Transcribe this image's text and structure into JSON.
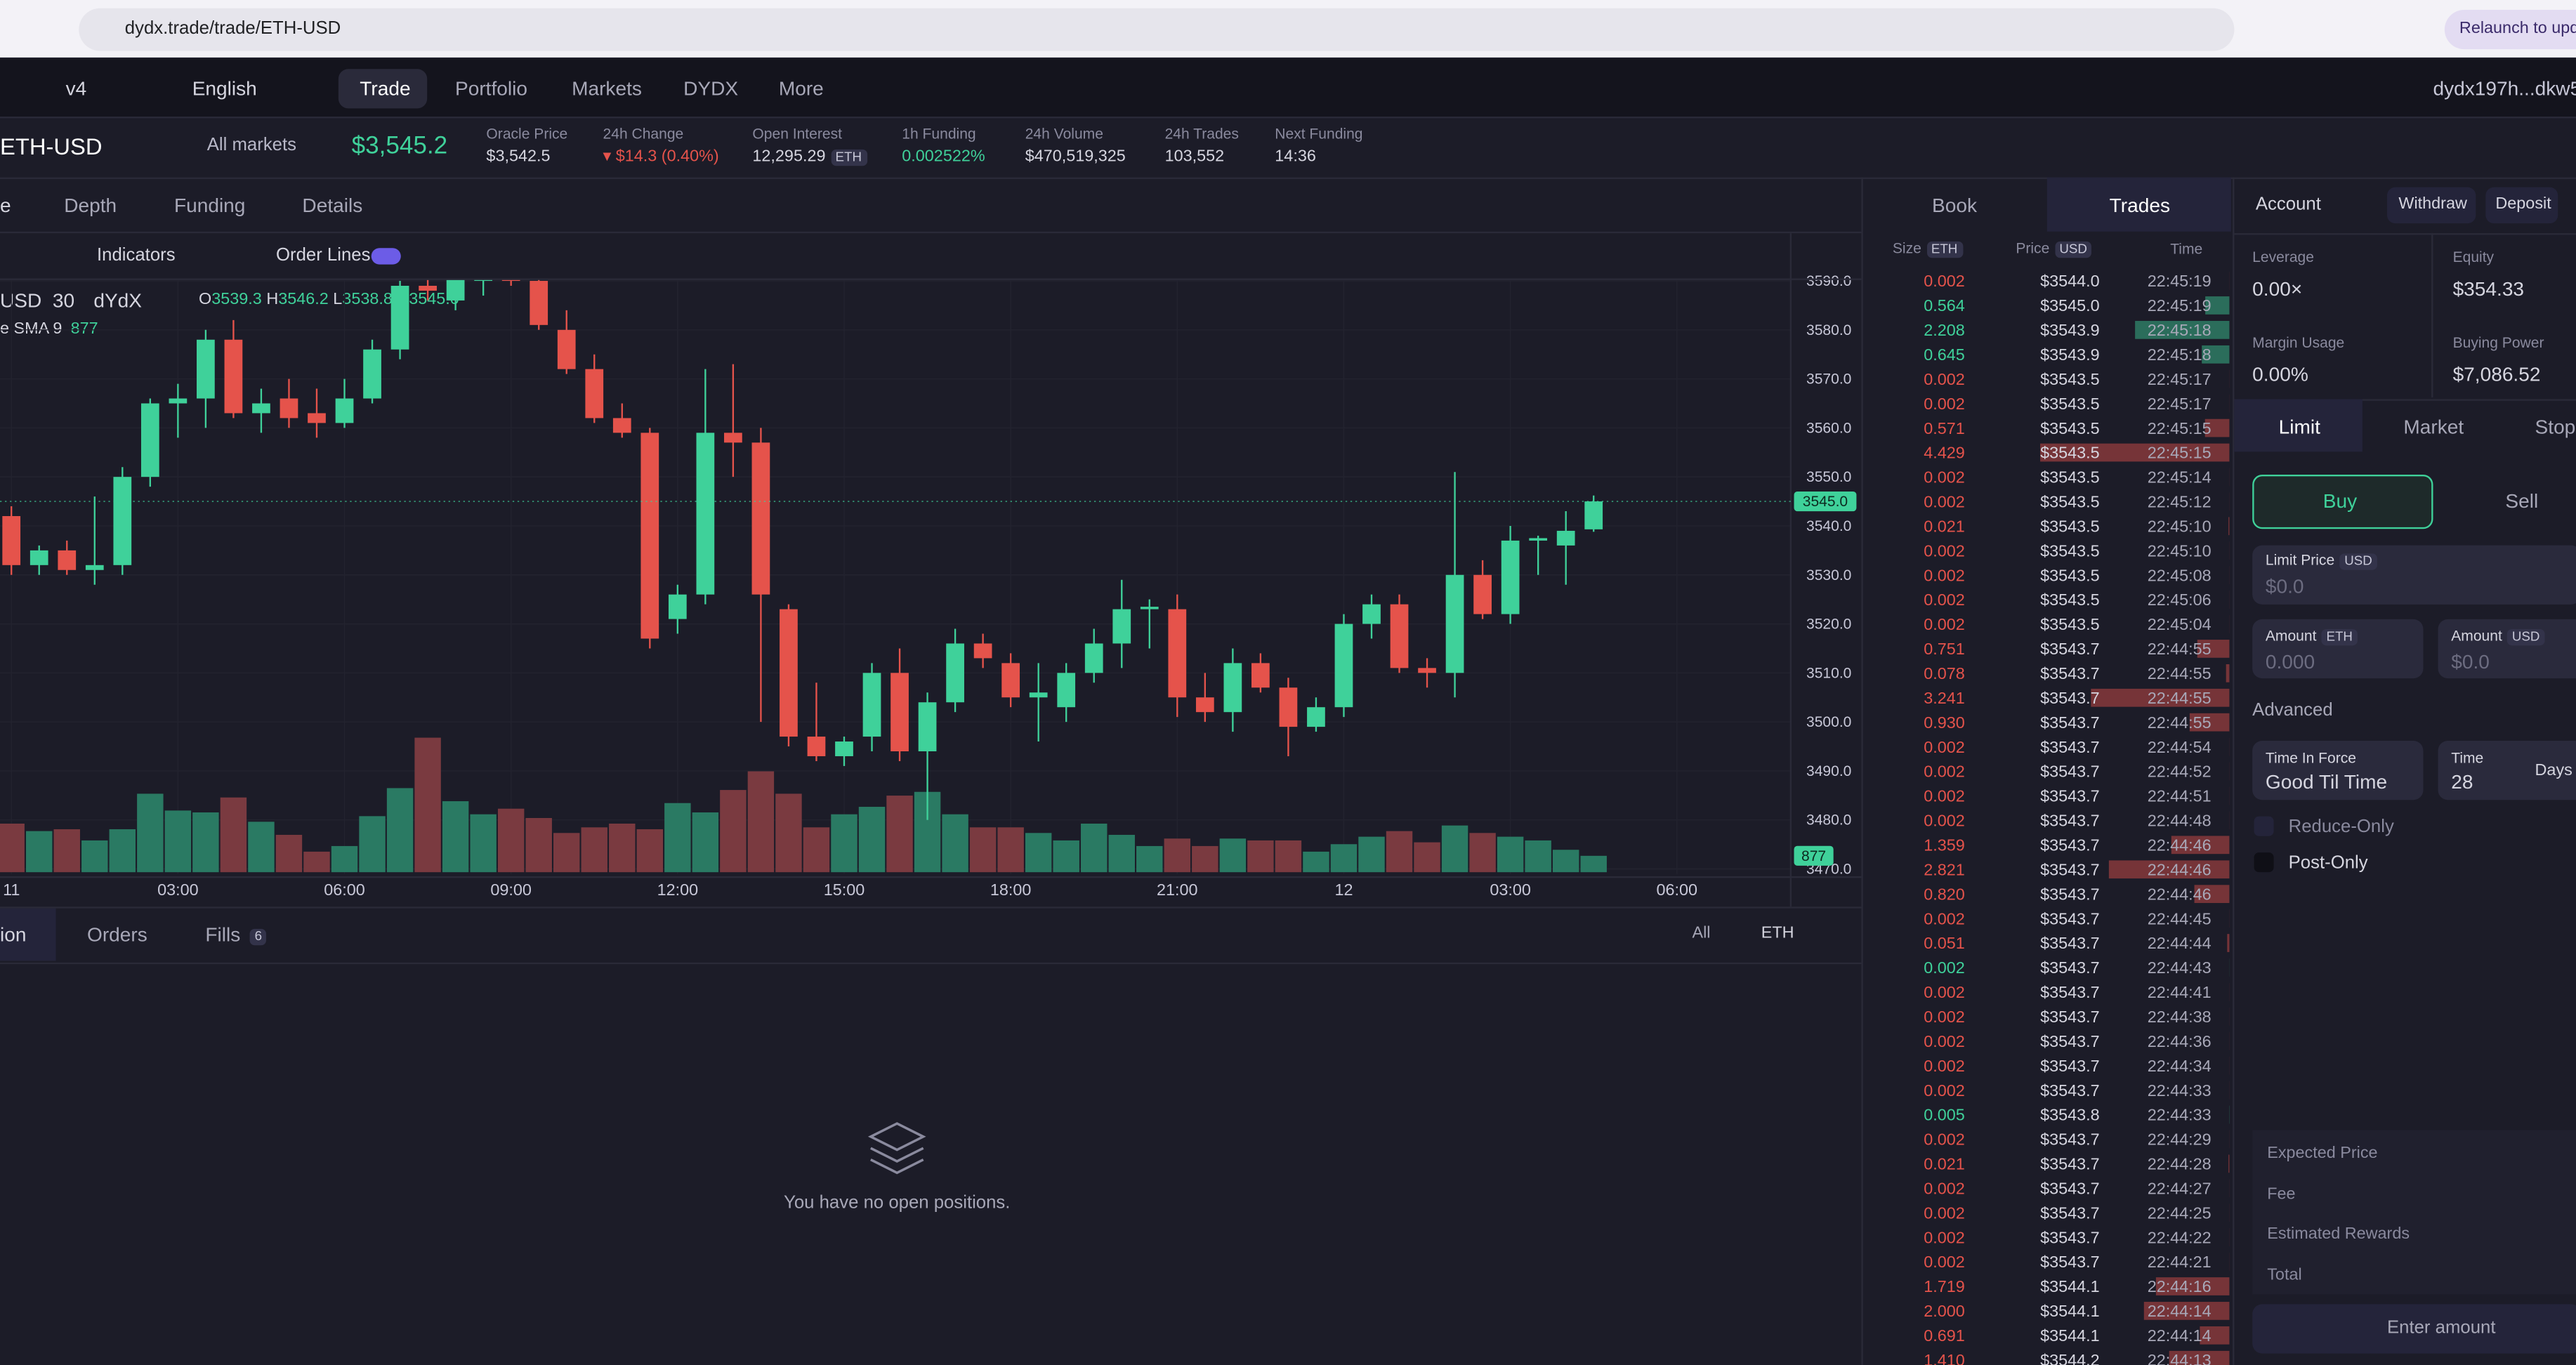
{
  "browser": {
    "url": "dydx.trade/trade/ETH-USD",
    "relaunch": "Relaunch to upda"
  },
  "nav": {
    "version": "v4",
    "language": "English",
    "items": [
      "Trade",
      "Portfolio",
      "Markets",
      "DYDX",
      "More"
    ],
    "account": "dydx197h...dkw5"
  },
  "market": {
    "pair": "ETH-USD",
    "all_markets": "All markets",
    "price": "$3,545.2",
    "stats": [
      {
        "label": "Oracle Price",
        "value": "$3,542.5"
      },
      {
        "label": "24h Change",
        "value": "▾ $14.3 (0.40%)"
      },
      {
        "label": "Open Interest",
        "value": "12,295.29",
        "unit": "ETH"
      },
      {
        "label": "1h Funding",
        "value": "0.002522%"
      },
      {
        "label": "24h Volume",
        "value": "$470,519,325"
      },
      {
        "label": "24h Trades",
        "value": "103,552"
      },
      {
        "label": "Next Funding",
        "value": "14:36"
      }
    ]
  },
  "chart_tabs": [
    "e",
    "Depth",
    "Funding",
    "Details"
  ],
  "toolbar": {
    "indicators": "Indicators",
    "order_lines": "Order Lines"
  },
  "legend": {
    "symbol": "USD",
    "interval": "30",
    "exchange": "dYdX",
    "O": "3539.3",
    "H": "3546.2",
    "L": "3538.8",
    "C": "3545.0",
    "sma": "e SMA 9",
    "sma_value": "877"
  },
  "chart": {
    "type": "candlestick",
    "up_color": "#3fd19a",
    "down_color": "#e5534b",
    "volume_up_color": "#2a7a63",
    "volume_down_color": "#7a3a40",
    "ylim": [
      3470,
      3590
    ],
    "vlim": [
      0,
      8000
    ],
    "xlim": [
      -0.41,
      64.1
    ],
    "yticks": [
      {
        "value": 3590,
        "label": "3590.0"
      },
      {
        "value": 3580,
        "label": "3580.0"
      },
      {
        "value": 3570,
        "label": "3570.0"
      },
      {
        "value": 3560,
        "label": "3560.0"
      },
      {
        "value": 3550,
        "label": "3550.0"
      },
      {
        "value": 3540,
        "label": "3540.0"
      },
      {
        "value": 3530,
        "label": "3530.0"
      },
      {
        "value": 3520,
        "label": "3520.0"
      },
      {
        "value": 3510,
        "label": "3510.0"
      },
      {
        "value": 3500,
        "label": "3500.0"
      },
      {
        "value": 3490,
        "label": "3490.0"
      },
      {
        "value": 3480,
        "label": "3480.0"
      },
      {
        "value": 3470,
        "label": "3470.0"
      }
    ],
    "xticks": [
      {
        "value": 0,
        "label": "11"
      },
      {
        "value": 6,
        "label": "03:00"
      },
      {
        "value": 12,
        "label": "06:00"
      },
      {
        "value": 18,
        "label": "09:00"
      },
      {
        "value": 24,
        "label": "12:00"
      },
      {
        "value": 30,
        "label": "15:00"
      },
      {
        "value": 36,
        "label": "18:00"
      },
      {
        "value": 42,
        "label": "21:00"
      },
      {
        "value": 48,
        "label": "12"
      },
      {
        "value": 54,
        "label": "03:00"
      },
      {
        "value": 60,
        "label": "06:00"
      }
    ],
    "last_price": {
      "value": 3545,
      "label": "3545.0"
    },
    "last_volume": 877,
    "candles": [
      [
        3542,
        3544,
        3530,
        3532,
        2600
      ],
      [
        3532,
        3536,
        3530,
        3535,
        2200
      ],
      [
        3535,
        3537,
        3530,
        3531,
        2300
      ],
      [
        3531,
        3546,
        3528,
        3532,
        1700
      ],
      [
        3532,
        3552,
        3530,
        3550,
        2300
      ],
      [
        3550,
        3566,
        3548,
        3565,
        4200
      ],
      [
        3565,
        3569,
        3558,
        3566,
        3300
      ],
      [
        3566,
        3580,
        3560,
        3578,
        3200
      ],
      [
        3578,
        3582,
        3562,
        3563,
        4000
      ],
      [
        3563,
        3568,
        3559,
        3565,
        2700
      ],
      [
        3566,
        3570,
        3560,
        3562,
        2000
      ],
      [
        3563,
        3568,
        3558,
        3561,
        1100
      ],
      [
        3561,
        3570,
        3560,
        3566,
        1400
      ],
      [
        3566,
        3578,
        3565,
        3576,
        3000
      ],
      [
        3576,
        3590,
        3574,
        3589,
        4500
      ],
      [
        3589,
        3592,
        3586,
        3588,
        7200
      ],
      [
        3586,
        3592,
        3584,
        3591,
        3800
      ],
      [
        3590,
        3593,
        3587,
        3591,
        3100
      ],
      [
        3591,
        3596,
        3589,
        3590,
        3400
      ],
      [
        3590,
        3592,
        3580,
        3581,
        2900
      ],
      [
        3580,
        3584,
        3571,
        3572,
        2100
      ],
      [
        3572,
        3575,
        3561,
        3562,
        2400
      ],
      [
        3562,
        3565,
        3558,
        3559,
        2600
      ],
      [
        3559,
        3560,
        3515,
        3517,
        2300
      ],
      [
        3521,
        3528,
        3518,
        3526,
        3700
      ],
      [
        3526,
        3572,
        3524,
        3559,
        3200
      ],
      [
        3559,
        3573,
        3550,
        3557,
        4400
      ],
      [
        3557,
        3560,
        3500,
        3526,
        5400
      ],
      [
        3523,
        3524,
        3495,
        3497,
        4200
      ],
      [
        3497,
        3508,
        3492,
        3493,
        2400
      ],
      [
        3493,
        3497,
        3491,
        3496,
        3100
      ],
      [
        3497,
        3512,
        3494,
        3510,
        3500
      ],
      [
        3510,
        3515,
        3492,
        3494,
        4100
      ],
      [
        3494,
        3506,
        3480,
        3504,
        4300
      ],
      [
        3504,
        3519,
        3502,
        3516,
        3100
      ],
      [
        3516,
        3518,
        3511,
        3513,
        2400
      ],
      [
        3512,
        3514,
        3503,
        3505,
        2400
      ],
      [
        3505,
        3512,
        3496,
        3506,
        2100
      ],
      [
        3503,
        3512,
        3500,
        3510,
        1700
      ],
      [
        3510,
        3519,
        3508,
        3516,
        2600
      ],
      [
        3516,
        3529,
        3511,
        3523,
        2000
      ],
      [
        3523,
        3525,
        3515,
        3523.5,
        1400
      ],
      [
        3523,
        3526,
        3501,
        3505,
        1800
      ],
      [
        3505,
        3510,
        3500,
        3502,
        1400
      ],
      [
        3502,
        3515,
        3498,
        3512,
        1800
      ],
      [
        3512,
        3514,
        3506,
        3507,
        1700
      ],
      [
        3507,
        3509,
        3493,
        3499,
        1700
      ],
      [
        3499,
        3505,
        3498,
        3503,
        1100
      ],
      [
        3503,
        3522,
        3501,
        3520,
        1500
      ],
      [
        3520,
        3526,
        3517,
        3524,
        1900
      ],
      [
        3524,
        3526,
        3510,
        3511,
        2200
      ],
      [
        3511,
        3513,
        3507,
        3510,
        1600
      ],
      [
        3510,
        3551,
        3505,
        3530,
        2500
      ],
      [
        3530,
        3533,
        3521,
        3522,
        2100
      ],
      [
        3522,
        3540,
        3520,
        3537,
        1900
      ],
      [
        3537,
        3538,
        3530,
        3537.5,
        1700
      ],
      [
        3536,
        3543,
        3528,
        3539,
        1200
      ],
      [
        3539.3,
        3546.2,
        3538.8,
        3545,
        877
      ]
    ]
  },
  "bottom": {
    "tabs": [
      "ion",
      "Orders",
      "Fills"
    ],
    "fills_count": "6",
    "filter": "All",
    "asset": "ETH",
    "empty": "You have no open positions."
  },
  "book": {
    "tabs": [
      "Book",
      "Trades"
    ],
    "headers": [
      {
        "label": "Size",
        "unit": "ETH"
      },
      {
        "label": "Price",
        "unit": "USD"
      },
      {
        "label": "Time"
      }
    ],
    "buy_color": "#3fd19a",
    "sell_color": "#e5534b",
    "trades": [
      {
        "size": "0.002",
        "price": "$3544.0",
        "time": "22:45:19",
        "color": "#e5534b"
      },
      {
        "size": "0.564",
        "price": "$3545.0",
        "time": "22:45:19",
        "color": "#3fd19a"
      },
      {
        "size": "2.208",
        "price": "$3543.9",
        "time": "22:45:18",
        "color": "#3fd19a"
      },
      {
        "size": "0.645",
        "price": "$3543.9",
        "time": "22:45:18",
        "color": "#3fd19a"
      },
      {
        "size": "0.002",
        "price": "$3543.5",
        "time": "22:45:17",
        "color": "#e5534b"
      },
      {
        "size": "0.002",
        "price": "$3543.5",
        "time": "22:45:17",
        "color": "#e5534b"
      },
      {
        "size": "0.571",
        "price": "$3543.5",
        "time": "22:45:15",
        "color": "#e5534b"
      },
      {
        "size": "4.429",
        "price": "$3543.5",
        "time": "22:45:15",
        "color": "#e5534b"
      },
      {
        "size": "0.002",
        "price": "$3543.5",
        "time": "22:45:14",
        "color": "#e5534b"
      },
      {
        "size": "0.002",
        "price": "$3543.5",
        "time": "22:45:12",
        "color": "#e5534b"
      },
      {
        "size": "0.021",
        "price": "$3543.5",
        "time": "22:45:10",
        "color": "#e5534b"
      },
      {
        "size": "0.002",
        "price": "$3543.5",
        "time": "22:45:10",
        "color": "#e5534b"
      },
      {
        "size": "0.002",
        "price": "$3543.5",
        "time": "22:45:08",
        "color": "#e5534b"
      },
      {
        "size": "0.002",
        "price": "$3543.5",
        "time": "22:45:06",
        "color": "#e5534b"
      },
      {
        "size": "0.002",
        "price": "$3543.5",
        "time": "22:45:04",
        "color": "#e5534b"
      },
      {
        "size": "0.751",
        "price": "$3543.7",
        "time": "22:44:55",
        "color": "#e5534b"
      },
      {
        "size": "0.078",
        "price": "$3543.7",
        "time": "22:44:55",
        "color": "#e5534b"
      },
      {
        "size": "3.241",
        "price": "$3543.7",
        "time": "22:44:55",
        "color": "#e5534b"
      },
      {
        "size": "0.930",
        "price": "$3543.7",
        "time": "22:44:55",
        "color": "#e5534b"
      },
      {
        "size": "0.002",
        "price": "$3543.7",
        "time": "22:44:54",
        "color": "#e5534b"
      },
      {
        "size": "0.002",
        "price": "$3543.7",
        "time": "22:44:52",
        "color": "#e5534b"
      },
      {
        "size": "0.002",
        "price": "$3543.7",
        "time": "22:44:51",
        "color": "#e5534b"
      },
      {
        "size": "0.002",
        "price": "$3543.7",
        "time": "22:44:48",
        "color": "#e5534b"
      },
      {
        "size": "1.359",
        "price": "$3543.7",
        "time": "22:44:46",
        "color": "#e5534b"
      },
      {
        "size": "2.821",
        "price": "$3543.7",
        "time": "22:44:46",
        "color": "#e5534b"
      },
      {
        "size": "0.820",
        "price": "$3543.7",
        "time": "22:44:46",
        "color": "#e5534b"
      },
      {
        "size": "0.002",
        "price": "$3543.7",
        "time": "22:44:45",
        "color": "#e5534b"
      },
      {
        "size": "0.051",
        "price": "$3543.7",
        "time": "22:44:44",
        "color": "#e5534b"
      },
      {
        "size": "0.002",
        "price": "$3543.7",
        "time": "22:44:43",
        "color": "#3fd19a"
      },
      {
        "size": "0.002",
        "price": "$3543.7",
        "time": "22:44:41",
        "color": "#e5534b"
      },
      {
        "size": "0.002",
        "price": "$3543.7",
        "time": "22:44:38",
        "color": "#e5534b"
      },
      {
        "size": "0.002",
        "price": "$3543.7",
        "time": "22:44:36",
        "color": "#e5534b"
      },
      {
        "size": "0.002",
        "price": "$3543.7",
        "time": "22:44:34",
        "color": "#e5534b"
      },
      {
        "size": "0.002",
        "price": "$3543.7",
        "time": "22:44:33",
        "color": "#e5534b"
      },
      {
        "size": "0.005",
        "price": "$3543.8",
        "time": "22:44:33",
        "color": "#3fd19a"
      },
      {
        "size": "0.002",
        "price": "$3543.7",
        "time": "22:44:29",
        "color": "#e5534b"
      },
      {
        "size": "0.021",
        "price": "$3543.7",
        "time": "22:44:28",
        "color": "#e5534b"
      },
      {
        "size": "0.002",
        "price": "$3543.7",
        "time": "22:44:27",
        "color": "#e5534b"
      },
      {
        "size": "0.002",
        "price": "$3543.7",
        "time": "22:44:25",
        "color": "#e5534b"
      },
      {
        "size": "0.002",
        "price": "$3543.7",
        "time": "22:44:22",
        "color": "#e5534b"
      },
      {
        "size": "0.002",
        "price": "$3543.7",
        "time": "22:44:21",
        "color": "#e5534b"
      },
      {
        "size": "1.719",
        "price": "$3544.1",
        "time": "22:44:16",
        "color": "#e5534b"
      },
      {
        "size": "2.000",
        "price": "$3544.1",
        "time": "22:44:14",
        "color": "#e5534b"
      },
      {
        "size": "0.691",
        "price": "$3544.1",
        "time": "22:44:14",
        "color": "#e5534b"
      },
      {
        "size": "1.410",
        "price": "$3544.2",
        "time": "22:44:13",
        "color": "#e5534b"
      }
    ]
  },
  "account": {
    "title": "Account",
    "withdraw": "Withdraw",
    "deposit": "Deposit",
    "metrics": [
      {
        "label": "Leverage",
        "value": "0.00×"
      },
      {
        "label": "Equity",
        "value": "$354.33"
      },
      {
        "label": "Margin Usage",
        "value": "0.00%"
      },
      {
        "label": "Buying Power",
        "value": "$7,086.52"
      }
    ]
  },
  "order": {
    "types": [
      "Limit",
      "Market",
      "Stop"
    ],
    "buy": "Buy",
    "sell": "Sell",
    "limit_price": {
      "label": "Limit Price",
      "unit": "USD",
      "placeholder": "$0.0"
    },
    "amount_eth": {
      "label": "Amount",
      "unit": "ETH",
      "placeholder": "0.000"
    },
    "amount_usd": {
      "label": "Amount",
      "unit": "USD",
      "placeholder": "$0.0"
    },
    "advanced": "Advanced",
    "tif_label": "Time In Force",
    "tif_value": "Good Til Time",
    "time_label": "Time",
    "time_value": "28",
    "time_unit": "Days",
    "reduce_only": "Reduce-Only",
    "post_only": "Post-Only",
    "summary": [
      "Expected Price",
      "Fee",
      "Estimated Rewards",
      "Total"
    ],
    "submit": "Enter amount"
  }
}
